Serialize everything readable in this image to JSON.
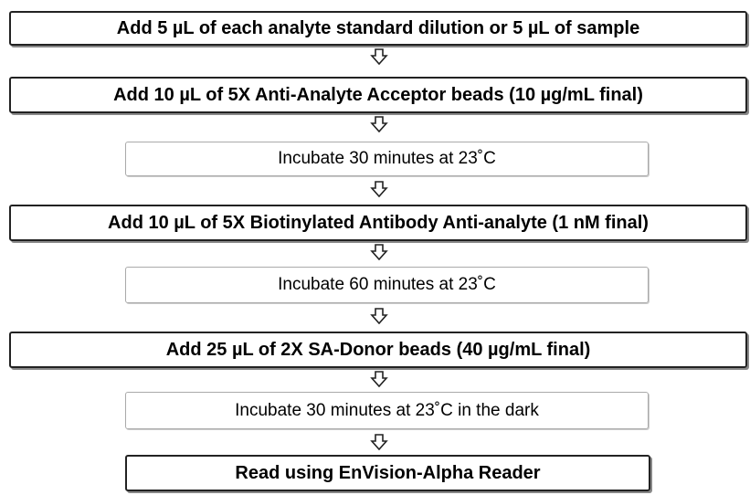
{
  "steps": [
    {
      "text": "Add 5 µL of each analyte standard dilution or 5 µL of sample"
    },
    {
      "text": "Add 10 µL of 5X Anti-Analyte Acceptor beads (10 µg/mL final)"
    },
    {
      "text": "Incubate 30 minutes at 23˚C"
    },
    {
      "text": "Add 10 µL of 5X Biotinylated Antibody Anti-analyte (1 nM final)"
    },
    {
      "text": "Incubate 60 minutes at 23˚C"
    },
    {
      "text": "Add 25 µL of 2X SA-Donor beads (40 µg/mL final)"
    },
    {
      "text": "Incubate 30 minutes at 23˚C in the dark"
    },
    {
      "text": "Read using EnVision-Alpha Reader"
    }
  ]
}
